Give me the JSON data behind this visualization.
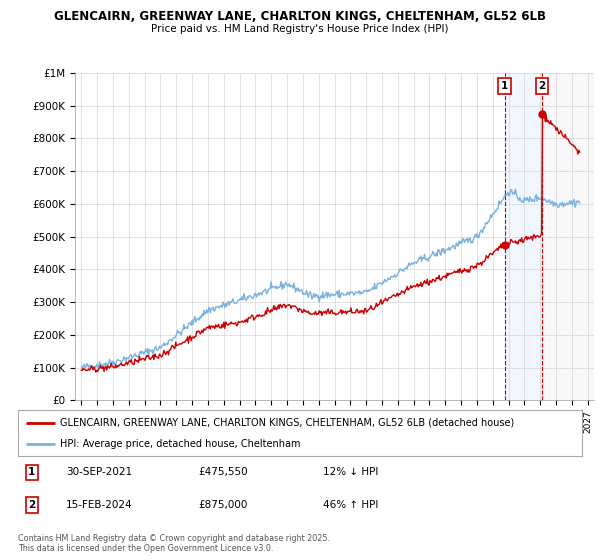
{
  "title_line1": "GLENCAIRN, GREENWAY LANE, CHARLTON KINGS, CHELTENHAM, GL52 6LB",
  "title_line2": "Price paid vs. HM Land Registry's House Price Index (HPI)",
  "background_color": "#ffffff",
  "grid_color": "#cccccc",
  "hpi_color": "#7ab3e0",
  "price_color": "#cc0000",
  "shade_between_color": "#ddeeff",
  "annotation1_year": 2021.75,
  "annotation1_value": 475550,
  "annotation1_date": "30-SEP-2021",
  "annotation1_price": "£475,550",
  "annotation1_hpi": "12% ↓ HPI",
  "annotation2_year": 2024.12,
  "annotation2_value": 875000,
  "annotation2_date": "15-FEB-2024",
  "annotation2_price": "£875,000",
  "annotation2_hpi": "46% ↑ HPI",
  "legend_property": "GLENCAIRN, GREENWAY LANE, CHARLTON KINGS, CHELTENHAM, GL52 6LB (detached house)",
  "legend_hpi": "HPI: Average price, detached house, Cheltenham",
  "copyright_text": "Contains HM Land Registry data © Crown copyright and database right 2025.\nThis data is licensed under the Open Government Licence v3.0.",
  "ylim": [
    0,
    1000000
  ],
  "xlim_start": 1994.6,
  "xlim_end": 2027.4
}
